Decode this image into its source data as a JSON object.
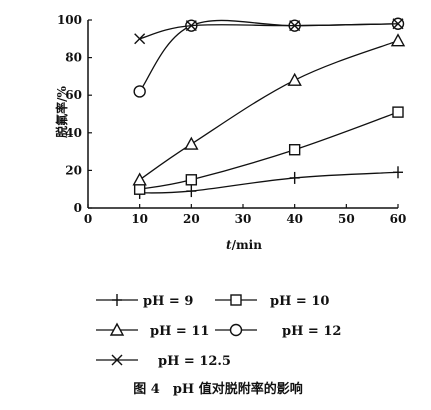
{
  "chart_data": {
    "type": "line",
    "xlabel_italic": "t",
    "xlabel_unit": "/min",
    "ylabel": "脱氟率/%",
    "xlim": [
      0,
      60
    ],
    "ylim": [
      0,
      100
    ],
    "xticks": [
      0,
      10,
      20,
      30,
      40,
      50,
      60
    ],
    "yticks": [
      0,
      20,
      40,
      60,
      80,
      100
    ],
    "grid": false,
    "legend_placement": "bottom",
    "series": [
      {
        "name": "pH = 9",
        "marker": "plus",
        "x": [
          10,
          20,
          40,
          60
        ],
        "y": [
          8,
          9,
          16,
          19
        ]
      },
      {
        "name": "pH = 10",
        "marker": "square",
        "x": [
          10,
          20,
          40,
          60
        ],
        "y": [
          10,
          15,
          31,
          51
        ]
      },
      {
        "name": "pH = 11",
        "marker": "triangle",
        "x": [
          10,
          20,
          40,
          60
        ],
        "y": [
          15,
          34,
          68,
          89
        ]
      },
      {
        "name": "pH = 12",
        "marker": "circle",
        "x": [
          10,
          20,
          40,
          60
        ],
        "y": [
          62,
          97,
          97,
          98
        ]
      },
      {
        "name": "pH = 12.5",
        "marker": "cross",
        "x": [
          10,
          20,
          40,
          60
        ],
        "y": [
          90,
          97,
          97,
          98
        ]
      }
    ],
    "caption": "图 4　pH 值对脱附率的影响"
  }
}
